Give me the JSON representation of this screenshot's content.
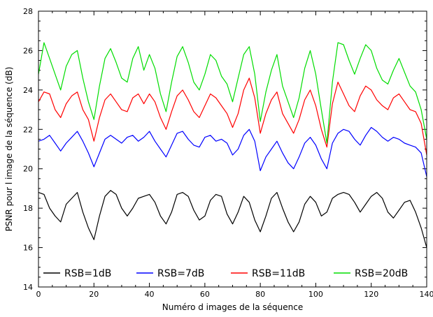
{
  "chart_data": {
    "type": "line",
    "title": "",
    "xlabel": "Numéro d images de la séquence",
    "ylabel": "PSNR pour l image de la séquence (dB)",
    "xlim": [
      0,
      140
    ],
    "ylim": [
      14,
      28
    ],
    "xticks": [
      0,
      20,
      40,
      60,
      80,
      100,
      120,
      140
    ],
    "yticks": [
      14,
      16,
      18,
      20,
      22,
      24,
      26,
      28
    ],
    "grid": false,
    "legend_position": "bottom",
    "series": [
      {
        "name": "RSB=1dB",
        "color": "#000000",
        "x": [
          0,
          2,
          4,
          6,
          8,
          10,
          12,
          14,
          16,
          18,
          20,
          22,
          24,
          26,
          28,
          30,
          32,
          34,
          36,
          38,
          40,
          42,
          44,
          46,
          48,
          50,
          52,
          54,
          56,
          58,
          60,
          62,
          64,
          66,
          68,
          70,
          72,
          74,
          76,
          78,
          80,
          82,
          84,
          86,
          88,
          90,
          92,
          94,
          96,
          98,
          100,
          102,
          104,
          106,
          108,
          110,
          112,
          114,
          116,
          118,
          120,
          122,
          124,
          126,
          128,
          130,
          132,
          134,
          136,
          138,
          140
        ],
        "values": [
          18.8,
          18.7,
          18.0,
          17.6,
          17.3,
          18.2,
          18.5,
          18.8,
          17.8,
          17.0,
          16.4,
          17.6,
          18.6,
          18.9,
          18.7,
          18.0,
          17.6,
          18.0,
          18.5,
          18.6,
          18.7,
          18.3,
          17.6,
          17.2,
          17.8,
          18.7,
          18.8,
          18.6,
          17.9,
          17.4,
          17.6,
          18.4,
          18.7,
          18.6,
          17.7,
          17.2,
          17.8,
          18.6,
          18.3,
          17.4,
          16.8,
          17.6,
          18.5,
          18.8,
          18.0,
          17.3,
          16.8,
          17.3,
          18.2,
          18.6,
          18.3,
          17.6,
          17.8,
          18.5,
          18.7,
          18.8,
          18.7,
          18.3,
          17.8,
          18.2,
          18.6,
          18.8,
          18.5,
          17.8,
          17.5,
          17.9,
          18.3,
          18.4,
          17.8,
          17.0,
          16.0
        ]
      },
      {
        "name": "RSB=7dB",
        "color": "#0000ff",
        "x": [
          0,
          2,
          4,
          6,
          8,
          10,
          12,
          14,
          16,
          18,
          20,
          22,
          24,
          26,
          28,
          30,
          32,
          34,
          36,
          38,
          40,
          42,
          44,
          46,
          48,
          50,
          52,
          54,
          56,
          58,
          60,
          62,
          64,
          66,
          68,
          70,
          72,
          74,
          76,
          78,
          80,
          82,
          84,
          86,
          88,
          90,
          92,
          94,
          96,
          98,
          100,
          102,
          104,
          106,
          108,
          110,
          112,
          114,
          116,
          118,
          120,
          122,
          124,
          126,
          128,
          130,
          132,
          134,
          136,
          138,
          140
        ],
        "values": [
          21.4,
          21.5,
          21.7,
          21.3,
          20.9,
          21.3,
          21.6,
          21.9,
          21.4,
          20.8,
          20.1,
          20.8,
          21.5,
          21.7,
          21.5,
          21.3,
          21.6,
          21.7,
          21.4,
          21.6,
          21.9,
          21.4,
          21.0,
          20.6,
          21.2,
          21.8,
          21.9,
          21.5,
          21.2,
          21.1,
          21.6,
          21.7,
          21.4,
          21.5,
          21.3,
          20.7,
          21.0,
          21.7,
          22.0,
          21.4,
          19.9,
          20.6,
          21.0,
          21.4,
          20.8,
          20.3,
          20.0,
          20.6,
          21.3,
          21.6,
          21.2,
          20.5,
          20.0,
          21.3,
          21.8,
          22.0,
          21.9,
          21.5,
          21.2,
          21.7,
          22.1,
          21.9,
          21.6,
          21.4,
          21.6,
          21.5,
          21.3,
          21.2,
          21.1,
          20.8,
          19.6
        ]
      },
      {
        "name": "RSB=11dB",
        "color": "#ff0000",
        "x": [
          0,
          2,
          4,
          6,
          8,
          10,
          12,
          14,
          16,
          18,
          20,
          22,
          24,
          26,
          28,
          30,
          32,
          34,
          36,
          38,
          40,
          42,
          44,
          46,
          48,
          50,
          52,
          54,
          56,
          58,
          60,
          62,
          64,
          66,
          68,
          70,
          72,
          74,
          76,
          78,
          80,
          82,
          84,
          86,
          88,
          90,
          92,
          94,
          96,
          98,
          100,
          102,
          104,
          106,
          108,
          110,
          112,
          114,
          116,
          118,
          120,
          122,
          124,
          126,
          128,
          130,
          132,
          134,
          136,
          138,
          140
        ],
        "values": [
          23.4,
          23.9,
          23.8,
          23.0,
          22.6,
          23.3,
          23.7,
          23.9,
          23.0,
          22.5,
          21.4,
          22.6,
          23.5,
          23.8,
          23.4,
          23.0,
          22.9,
          23.6,
          23.8,
          23.3,
          23.8,
          23.4,
          22.6,
          22.0,
          22.9,
          23.7,
          24.0,
          23.5,
          22.9,
          22.6,
          23.2,
          23.8,
          23.6,
          23.2,
          22.8,
          22.1,
          22.8,
          24.0,
          24.6,
          23.6,
          21.8,
          22.8,
          23.5,
          23.9,
          22.8,
          22.3,
          21.8,
          22.5,
          23.5,
          24.0,
          23.2,
          22.0,
          21.1,
          23.3,
          24.4,
          23.8,
          23.2,
          22.9,
          23.7,
          24.2,
          24.0,
          23.5,
          23.2,
          23.0,
          23.6,
          23.8,
          23.4,
          23.0,
          22.9,
          22.3,
          20.7
        ]
      },
      {
        "name": "RSB=20dB",
        "color": "#00dd00",
        "x": [
          0,
          2,
          4,
          6,
          8,
          10,
          12,
          14,
          16,
          18,
          20,
          22,
          24,
          26,
          28,
          30,
          32,
          34,
          36,
          38,
          40,
          42,
          44,
          46,
          48,
          50,
          52,
          54,
          56,
          58,
          60,
          62,
          64,
          66,
          68,
          70,
          72,
          74,
          76,
          78,
          80,
          82,
          84,
          86,
          88,
          90,
          92,
          94,
          96,
          98,
          100,
          102,
          104,
          106,
          108,
          110,
          112,
          114,
          116,
          118,
          120,
          122,
          124,
          126,
          128,
          130,
          132,
          134,
          136,
          138,
          140
        ],
        "values": [
          24.8,
          26.4,
          25.6,
          24.8,
          24.0,
          25.2,
          25.8,
          26.0,
          24.6,
          23.4,
          22.5,
          24.2,
          25.6,
          26.1,
          25.4,
          24.6,
          24.4,
          25.6,
          26.2,
          25.0,
          25.8,
          25.1,
          23.8,
          22.9,
          24.4,
          25.7,
          26.2,
          25.4,
          24.4,
          24.0,
          24.8,
          25.8,
          25.5,
          24.7,
          24.3,
          23.4,
          24.6,
          25.8,
          26.2,
          24.8,
          22.4,
          23.9,
          25.0,
          25.8,
          24.2,
          23.4,
          22.6,
          23.6,
          25.1,
          26.0,
          24.8,
          23.0,
          21.3,
          24.4,
          26.4,
          26.3,
          25.5,
          24.8,
          25.6,
          26.3,
          26.0,
          25.1,
          24.5,
          24.3,
          25.0,
          25.6,
          24.9,
          24.2,
          23.9,
          23.0,
          21.5
        ]
      }
    ]
  }
}
